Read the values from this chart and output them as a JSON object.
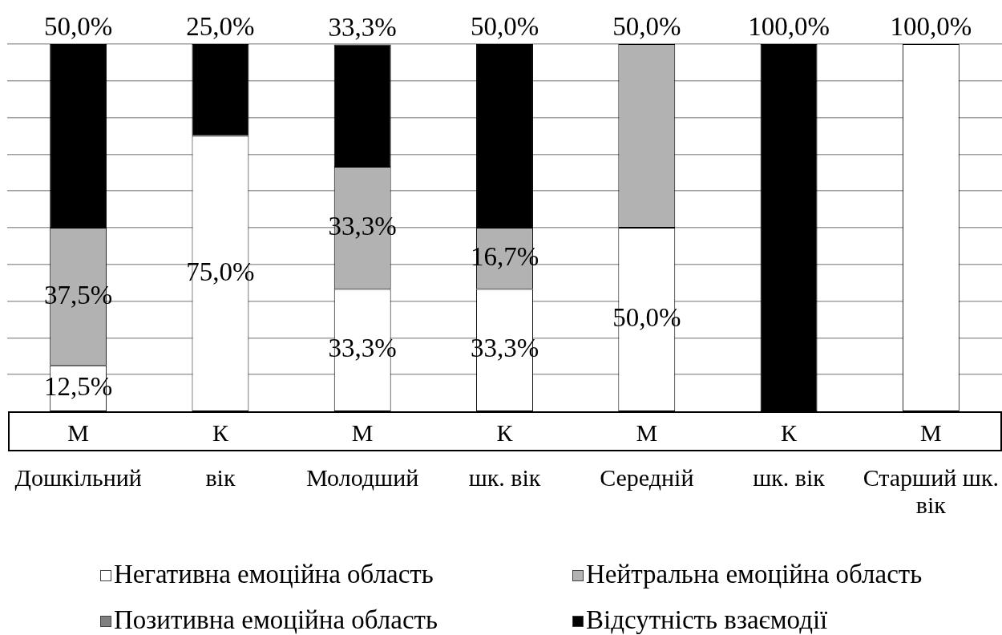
{
  "chart_data": {
    "type": "bar",
    "stacked": true,
    "categories": [
      "М\nДошкільний",
      "К\nвік",
      "М\nМолодший",
      "К\nшк. вік",
      "М\nСередній",
      "К\nшк. вік",
      "М\nСтарший шк.\nвік"
    ],
    "series": [
      {
        "name": "Негативна емоційна область",
        "color": "#ffffff",
        "values": [
          12.5,
          75,
          33.3,
          33.3,
          50,
          0,
          100
        ],
        "value_labels": [
          "12,5%",
          "75,0%",
          "33,3%",
          "33,3%",
          "50,0%",
          null,
          "100,0%"
        ]
      },
      {
        "name": "Нейтральна емоційна область",
        "color": "#b2b2b2",
        "values": [
          37.5,
          0,
          33.3,
          16.7,
          50,
          0,
          0
        ],
        "value_labels": [
          "37,5%",
          null,
          "33,3%",
          "16,7%",
          "50,0%",
          null,
          null
        ]
      },
      {
        "name": "Позитивна емоційна область",
        "color": "#808080",
        "values": [
          0,
          0,
          0,
          0,
          0,
          0,
          0
        ]
      },
      {
        "name": "Відсутність взаємодії",
        "color": "#000000",
        "values": [
          50,
          25,
          33.3,
          50,
          0,
          100,
          0
        ],
        "value_labels": [
          "50,0%",
          "25,0%",
          "33,3%",
          "50,0%",
          null,
          "100,0%",
          null
        ]
      }
    ],
    "ylim": [
      0,
      100
    ],
    "yticks": [
      {
        "value": 10,
        "label": null
      },
      {
        "value": 20,
        "label": null
      },
      {
        "value": 30,
        "label": null
      },
      {
        "value": 40,
        "label": null
      },
      {
        "value": 50,
        "label": null
      },
      {
        "value": 60,
        "label": null
      },
      {
        "value": 70,
        "label": null
      },
      {
        "value": 80,
        "label": null
      },
      {
        "value": 90,
        "label": null
      },
      {
        "value": 100,
        "label": null
      }
    ],
    "grid": "y",
    "tick_labels": "x",
    "legend": "bottom"
  }
}
